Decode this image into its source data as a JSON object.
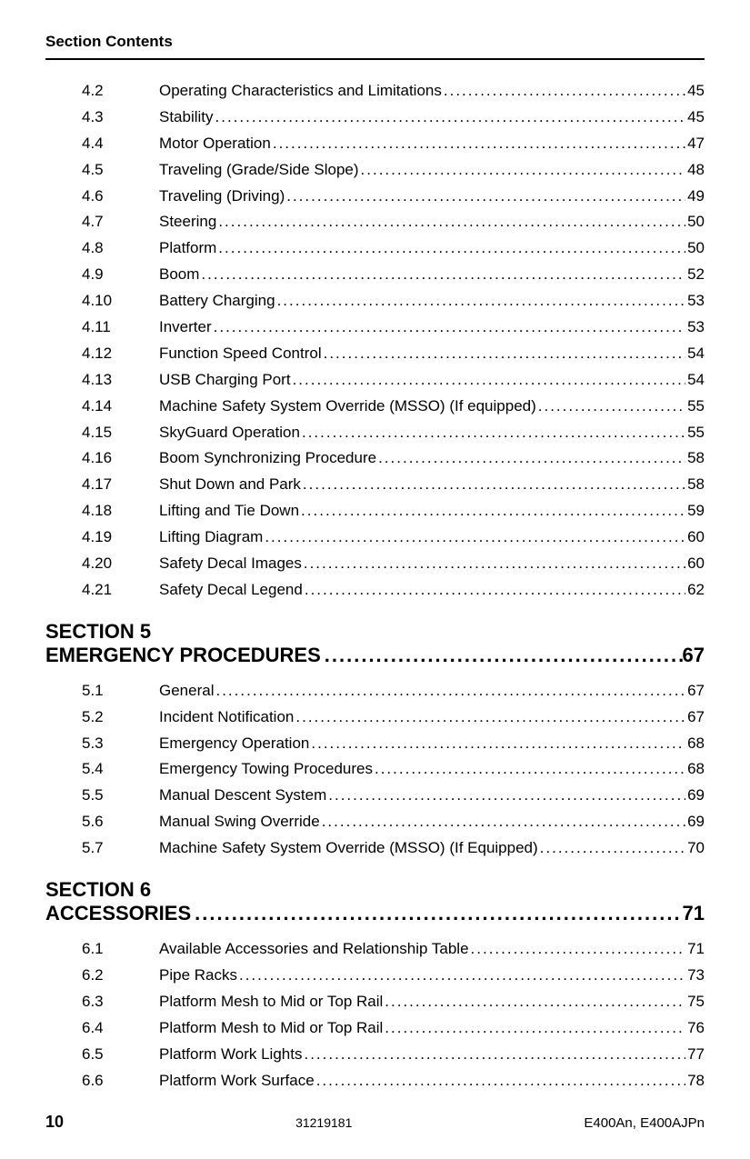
{
  "header": {
    "title": "Section Contents"
  },
  "block4": [
    {
      "num": "4.2",
      "title": "Operating Characteristics and Limitations",
      "page": "45"
    },
    {
      "num": "4.3",
      "title": "Stability",
      "page": "45"
    },
    {
      "num": "4.4",
      "title": "Motor Operation",
      "page": "47"
    },
    {
      "num": "4.5",
      "title": "Traveling (Grade/Side Slope)",
      "page": "48"
    },
    {
      "num": "4.6",
      "title": "Traveling (Driving)",
      "page": "49"
    },
    {
      "num": "4.7",
      "title": "Steering",
      "page": "50"
    },
    {
      "num": "4.8",
      "title": "Platform",
      "page": "50"
    },
    {
      "num": "4.9",
      "title": "Boom",
      "page": "52"
    },
    {
      "num": "4.10",
      "title": "Battery Charging",
      "page": "53"
    },
    {
      "num": "4.11",
      "title": "Inverter",
      "page": "53"
    },
    {
      "num": "4.12",
      "title": "Function Speed Control",
      "page": "54"
    },
    {
      "num": "4.13",
      "title": "USB Charging Port",
      "page": "54"
    },
    {
      "num": "4.14",
      "title": "Machine Safety System Override (MSSO) (If equipped)",
      "page": "55"
    },
    {
      "num": "4.15",
      "title": "SkyGuard Operation",
      "page": "55"
    },
    {
      "num": "4.16",
      "title": "Boom Synchronizing Procedure",
      "page": "58"
    },
    {
      "num": "4.17",
      "title": "Shut Down and Park",
      "page": "58"
    },
    {
      "num": "4.18",
      "title": "Lifting and Tie Down",
      "page": "59"
    },
    {
      "num": "4.19",
      "title": "Lifting Diagram",
      "page": "60"
    },
    {
      "num": "4.20",
      "title": "Safety Decal Images",
      "page": "60"
    },
    {
      "num": "4.21",
      "title": "Safety Decal Legend",
      "page": "62"
    }
  ],
  "section5": {
    "line1": "SECTION 5",
    "title": "EMERGENCY PROCEDURES",
    "page": "67"
  },
  "block5": [
    {
      "num": "5.1",
      "title": "General",
      "page": "67"
    },
    {
      "num": "5.2",
      "title": "Incident Notification",
      "page": "67"
    },
    {
      "num": "5.3",
      "title": "Emergency Operation",
      "page": "68"
    },
    {
      "num": "5.4",
      "title": "Emergency Towing Procedures",
      "page": "68"
    },
    {
      "num": "5.5",
      "title": "Manual Descent System",
      "page": "69"
    },
    {
      "num": "5.6",
      "title": "Manual Swing Override",
      "page": "69"
    },
    {
      "num": "5.7",
      "title": "Machine Safety System Override (MSSO) (If Equipped)",
      "page": "70"
    }
  ],
  "section6": {
    "line1": "SECTION 6",
    "title": "ACCESSORIES",
    "page": "71"
  },
  "block6": [
    {
      "num": "6.1",
      "title": "Available Accessories and Relationship Table",
      "page": "71"
    },
    {
      "num": "6.2",
      "title": "Pipe Racks",
      "page": "73"
    },
    {
      "num": "6.3",
      "title": "Platform Mesh to Mid or Top Rail",
      "page": "75"
    },
    {
      "num": "6.4",
      "title": "Platform Mesh to Mid or Top Rail",
      "page": "76"
    },
    {
      "num": "6.5",
      "title": "Platform Work Lights",
      "page": "77"
    },
    {
      "num": "6.6",
      "title": "Platform Work Surface",
      "page": "78"
    }
  ],
  "footer": {
    "pageNumber": "10",
    "docId": "31219181",
    "models": "E400An, E400AJPn"
  }
}
